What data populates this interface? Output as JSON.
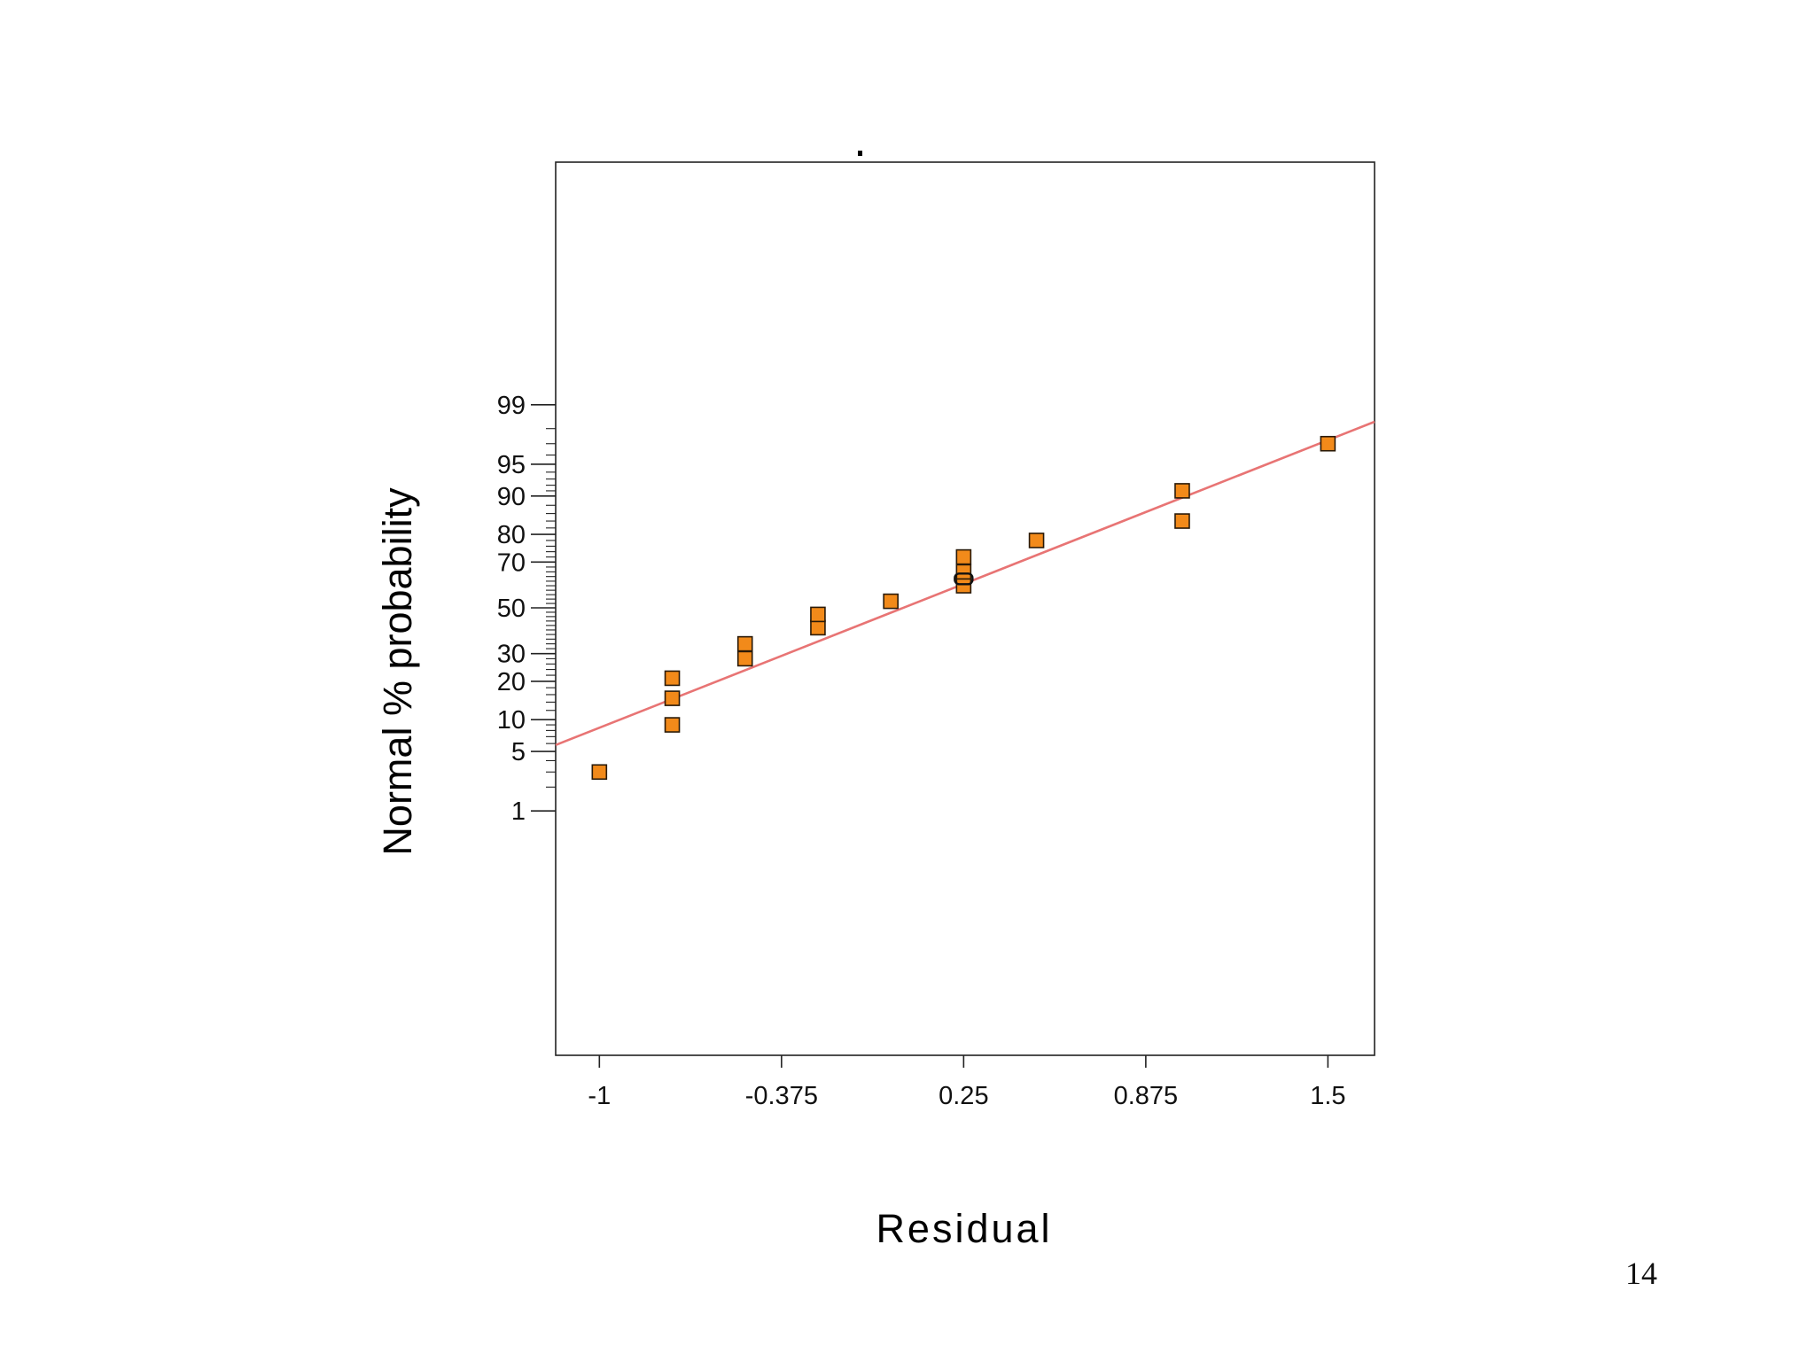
{
  "page": {
    "page_number": "14"
  },
  "colors": {
    "point_fill": "#f28a1a",
    "point_stroke": "#2a1a08",
    "fit_line": "#e87474",
    "frame": "#222222"
  },
  "chart_data": {
    "type": "scatter",
    "title": "",
    "xlabel": "Residual",
    "ylabel": "Normal % probability",
    "y_scale": "normal-probability",
    "xlim": [
      -1.15,
      1.66
    ],
    "ylim": [
      0.12,
      99.88
    ],
    "x_ticks": [
      -1,
      -0.375,
      0.25,
      0.875,
      1.5
    ],
    "x_tick_labels": [
      "-1",
      "-0.375",
      "0.25",
      "0.875",
      "1.5"
    ],
    "y_ticks": [
      1,
      5,
      10,
      20,
      30,
      50,
      70,
      80,
      90,
      95,
      99
    ],
    "y_tick_labels": [
      "1",
      "5",
      "10",
      "20",
      "30",
      "50",
      "70",
      "80",
      "90",
      "95",
      "99"
    ],
    "y_minor_ticks": [
      2,
      3,
      4,
      6,
      7,
      8,
      9,
      12,
      14,
      16,
      18,
      22,
      24,
      26,
      28,
      32,
      34,
      36,
      38,
      40,
      42,
      44,
      46,
      48,
      52,
      54,
      56,
      58,
      60,
      62,
      64,
      66,
      68,
      72,
      74,
      76,
      78,
      82,
      84,
      86,
      88,
      91,
      92,
      93,
      94,
      96,
      97,
      98
    ],
    "grid": false,
    "legend": "none",
    "series": [
      {
        "points": [
          {
            "x": -1.0,
            "y": 3.0
          },
          {
            "x": -0.75,
            "y": 9.0
          },
          {
            "x": -0.75,
            "y": 15.0
          },
          {
            "x": -0.75,
            "y": 21.0
          },
          {
            "x": -0.5,
            "y": 28.0
          },
          {
            "x": -0.5,
            "y": 34.0
          },
          {
            "x": -0.25,
            "y": 41.0
          },
          {
            "x": -0.25,
            "y": 47.0
          },
          {
            "x": 0.0,
            "y": 53.0
          },
          {
            "x": 0.25,
            "y": 60.0
          },
          {
            "x": 0.25,
            "y": 66.0
          },
          {
            "x": 0.25,
            "y": 72.0
          },
          {
            "x": 0.5,
            "y": 78.0
          },
          {
            "x": 1.0,
            "y": 84.0
          },
          {
            "x": 1.0,
            "y": 91.0
          },
          {
            "x": 1.5,
            "y": 97.0
          }
        ],
        "highlighted_point": {
          "x": 0.25,
          "y": 63.0
        }
      }
    ],
    "fit_line": [
      {
        "x": -1.15,
        "y": 5.8
      },
      {
        "x": 1.66,
        "y": 98.35
      }
    ]
  }
}
